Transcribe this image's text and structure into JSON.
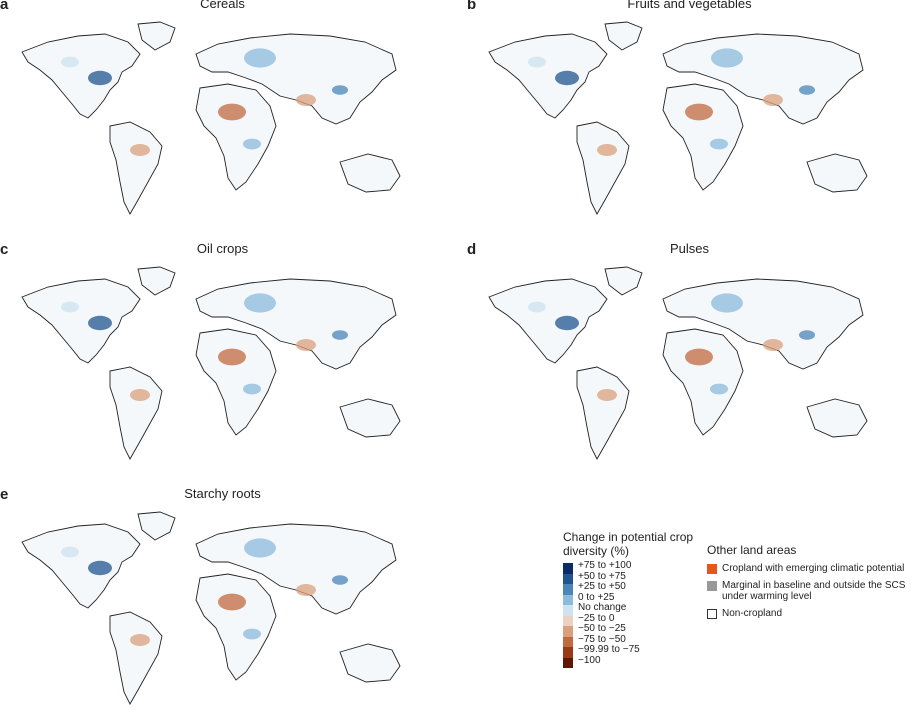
{
  "panels": [
    {
      "letter": "a",
      "title": "Cereals"
    },
    {
      "letter": "b",
      "title": "Fruits and vegetables"
    },
    {
      "letter": "c",
      "title": "Oil crops"
    },
    {
      "letter": "d",
      "title": "Pulses"
    },
    {
      "letter": "e",
      "title": "Starchy roots"
    }
  ],
  "legend_scale": {
    "title": "Change in potential crop diversity (%)",
    "items": [
      {
        "label": "+75 to +100",
        "color": "#0c2a6b"
      },
      {
        "label": "+50 to +75",
        "color": "#22558f"
      },
      {
        "label": "+25 to +50",
        "color": "#4a86b8"
      },
      {
        "label": "0 to +25",
        "color": "#8dbbdc"
      },
      {
        "label": "No change",
        "color": "#cfe3f0"
      },
      {
        "label": "−25 to 0",
        "color": "#ecd2c2"
      },
      {
        "label": "−50 to −25",
        "color": "#d9a07d"
      },
      {
        "label": "−75 to −50",
        "color": "#c26a3f"
      },
      {
        "label": "−99.99 to −75",
        "color": "#9a3b18"
      },
      {
        "label": "−100",
        "color": "#5e1605"
      }
    ]
  },
  "legend_other": {
    "title": "Other land areas",
    "items": [
      {
        "label": "Cropland with emerging climatic potential",
        "color": "#e8541c"
      },
      {
        "label": "Marginal in baseline and outside the SCS under warming level",
        "color": "#999999"
      },
      {
        "label": "Non-cropland",
        "color": "#ffffff"
      }
    ]
  }
}
